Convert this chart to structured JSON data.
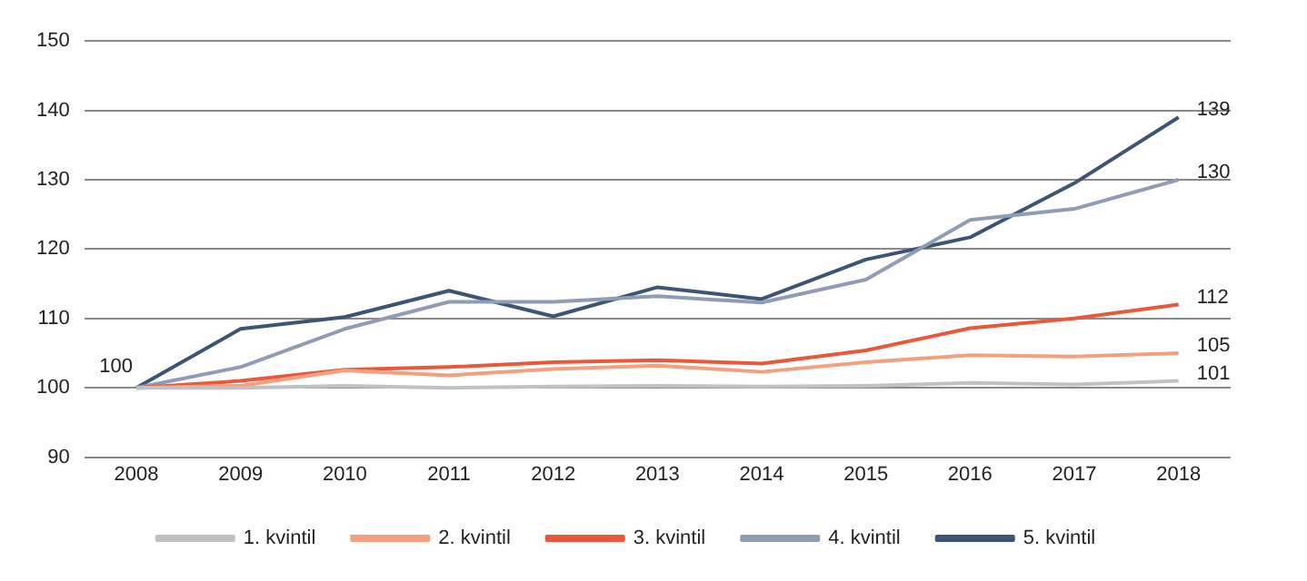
{
  "chart_data": {
    "type": "line",
    "categories": [
      "2008",
      "2009",
      "2010",
      "2011",
      "2012",
      "2013",
      "2014",
      "2015",
      "2016",
      "2017",
      "2018"
    ],
    "series": [
      {
        "name": "1. kvintil",
        "color": "#bfc1c4",
        "values": [
          100,
          100,
          100.3,
          100,
          100.2,
          100.3,
          100.2,
          100.3,
          100.7,
          100.5,
          101
        ],
        "value_labels": [
          null,
          null,
          null,
          null,
          null,
          null,
          null,
          null,
          null,
          null,
          "101"
        ]
      },
      {
        "name": "2. kvintil",
        "color": "#f4a07f",
        "values": [
          100,
          100.3,
          102.5,
          101.8,
          102.7,
          103.2,
          102.3,
          103.7,
          104.7,
          104.5,
          105
        ],
        "value_labels": [
          null,
          null,
          null,
          null,
          null,
          null,
          null,
          null,
          null,
          null,
          "105"
        ]
      },
      {
        "name": "3. kvintil",
        "color": "#e9583a",
        "values": [
          100,
          101,
          102.6,
          103,
          103.7,
          104,
          103.5,
          105.4,
          108.6,
          110,
          112
        ],
        "value_labels": [
          null,
          null,
          null,
          null,
          null,
          null,
          null,
          null,
          null,
          null,
          "112"
        ]
      },
      {
        "name": "4. kvintil",
        "color": "#8e9db5",
        "values": [
          100,
          103,
          108.5,
          112.4,
          112.4,
          113.2,
          112.3,
          115.6,
          124.2,
          125.8,
          130
        ],
        "value_labels": [
          null,
          null,
          null,
          null,
          null,
          null,
          null,
          null,
          null,
          null,
          "130"
        ]
      },
      {
        "name": "5. kvintil",
        "color": "#3d5574",
        "values": [
          100,
          108.5,
          110.2,
          114,
          110.3,
          114.5,
          112.8,
          118.5,
          121.7,
          129.5,
          139
        ],
        "value_labels": [
          "100",
          null,
          null,
          null,
          null,
          null,
          null,
          null,
          null,
          null,
          "139"
        ]
      }
    ],
    "ylim": [
      90,
      150
    ],
    "yticks": [
      90,
      100,
      110,
      120,
      130,
      140,
      150
    ],
    "grid": "y",
    "legend": "bottom",
    "marker": "none",
    "line_style": "solid"
  }
}
